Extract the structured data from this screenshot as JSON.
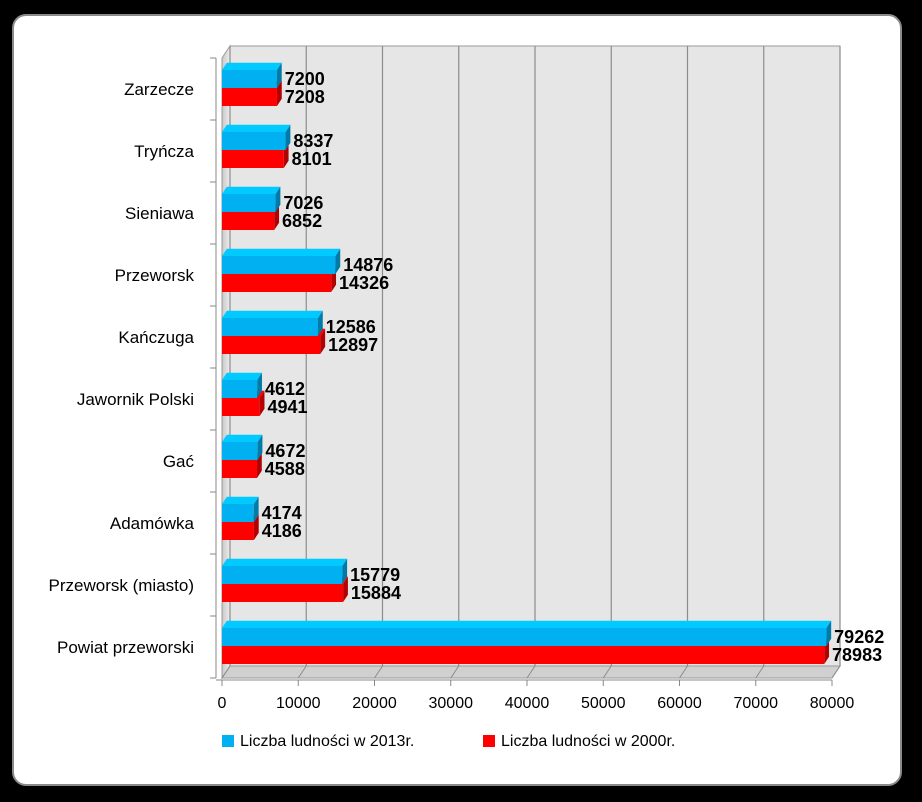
{
  "chart_data": {
    "type": "bar",
    "orientation": "horizontal",
    "categories": [
      "Zarzecze",
      "Tryńcza",
      "Sieniawa",
      "Przeworsk",
      "Kańczuga",
      "Jawornik Polski",
      "Gać",
      "Adamówka",
      "Przeworsk (miasto)",
      "Powiat przeworski"
    ],
    "series": [
      {
        "name": "Liczba ludności w 2013r.",
        "color": "#00b0f0",
        "values": [
          7200,
          8337,
          7026,
          14876,
          12586,
          4612,
          4672,
          4174,
          15779,
          79262
        ]
      },
      {
        "name": "Liczba ludności w 2000r.",
        "color": "#ff0000",
        "values": [
          7208,
          8101,
          6852,
          14326,
          12897,
          4941,
          4588,
          4186,
          15884,
          78983
        ]
      }
    ],
    "xlim": [
      0,
      80000
    ],
    "xticks": [
      "0",
      "10000",
      "20000",
      "30000",
      "40000",
      "50000",
      "60000",
      "70000",
      "80000"
    ],
    "grid": true,
    "legend_position": "bottom"
  }
}
